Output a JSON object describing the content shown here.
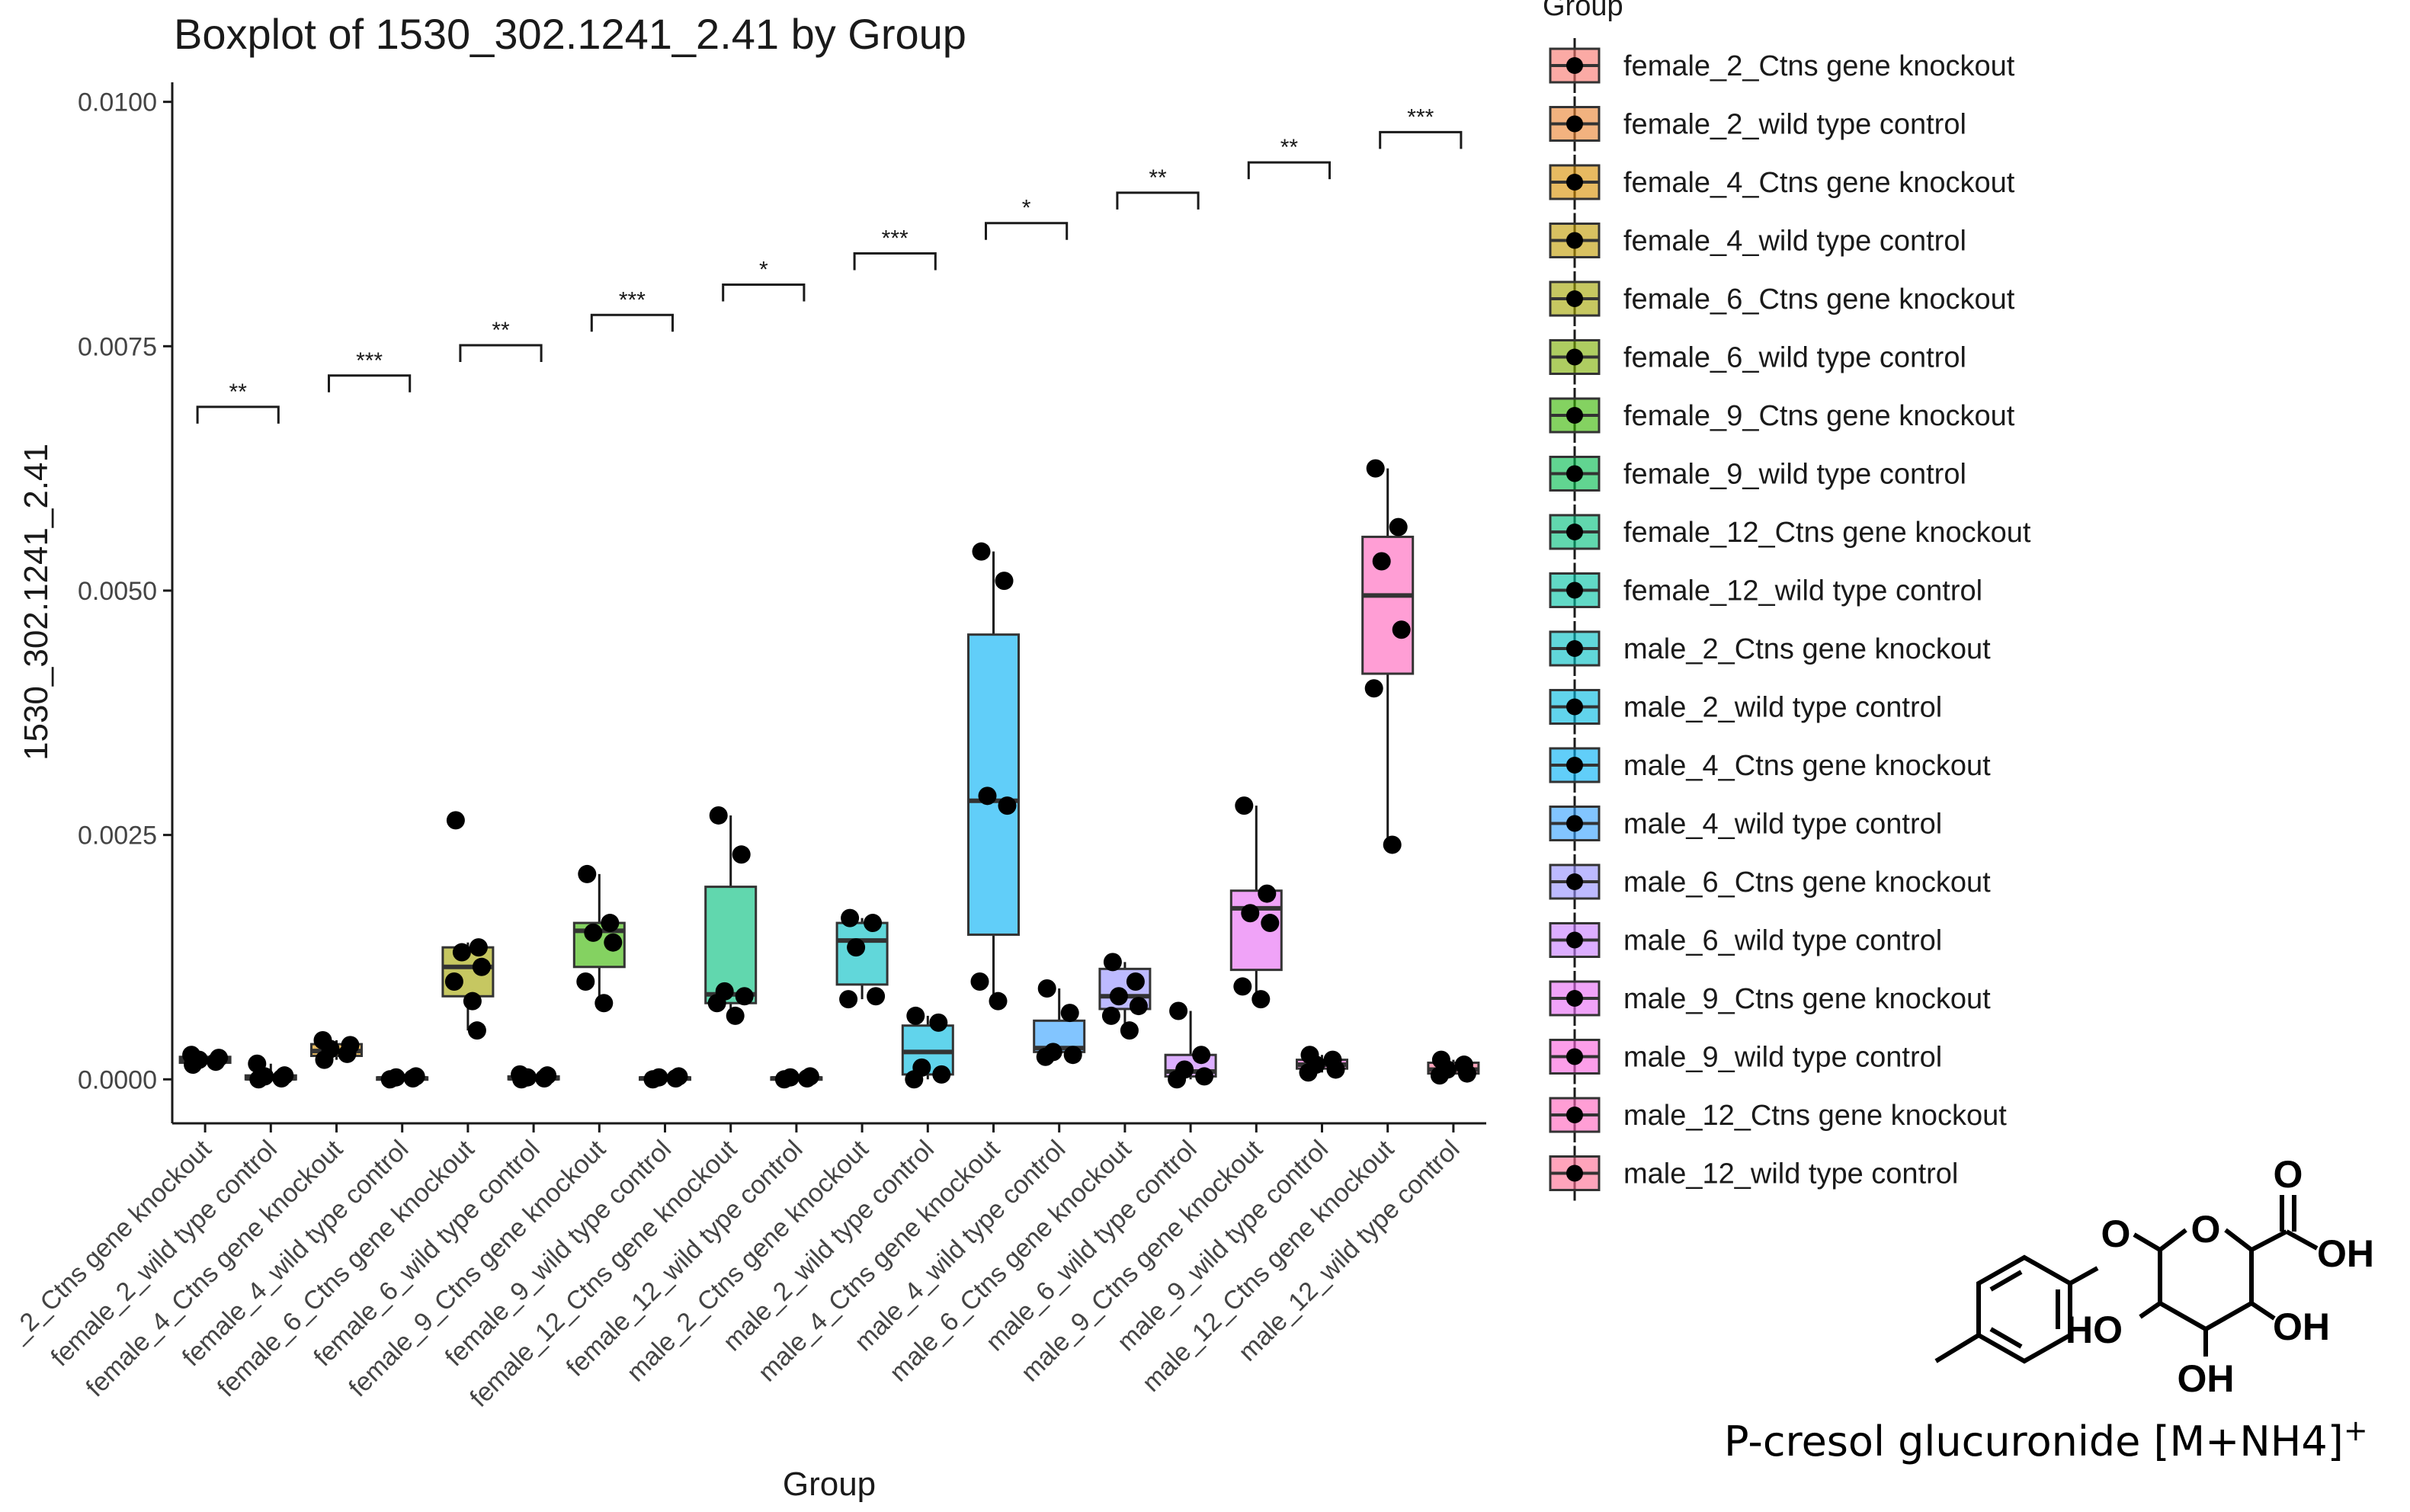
{
  "chart_data": {
    "type": "boxplot",
    "title": "Boxplot of 1530_302.1241_2.41 by Group",
    "xlabel": "Group",
    "ylabel": "1530_302.1241_2.41",
    "ylim": [
      -0.00045,
      0.0102
    ],
    "yticks": [
      "0.0000",
      "0.0025",
      "0.0050",
      "0.0075",
      "0.0100"
    ],
    "ytick_values": [
      0,
      0.0025,
      0.005,
      0.0075,
      0.01
    ],
    "grid": false,
    "legend_title": "Group",
    "legend_position": "right",
    "tick_label_prefix": "female",
    "categories": [
      "female_2_Ctns gene knockout",
      "female_2_wild type control",
      "female_4_Ctns gene knockout",
      "female_4_wild type control",
      "female_6_Ctns gene knockout",
      "female_6_wild type control",
      "female_9_Ctns gene knockout",
      "female_9_wild type control",
      "female_12_Ctns gene knockout",
      "female_12_wild type control",
      "male_2_Ctns gene knockout",
      "male_2_wild type control",
      "male_4_Ctns gene knockout",
      "male_4_wild type control",
      "male_6_Ctns gene knockout",
      "male_6_wild type control",
      "male_9_Ctns gene knockout",
      "male_9_wild type control",
      "male_12_Ctns gene knockout",
      "male_12_wild type control"
    ],
    "tick_labels": [
      "_2_Ctns gene knockout",
      "female_2_wild type control",
      "female_4_Ctns gene knockout",
      "female_4_wild type control",
      "female_6_Ctns gene knockout",
      "female_6_wild type control",
      "female_9_Ctns gene knockout",
      "female_9_wild type control",
      "female_12_Ctns gene knockout",
      "female_12_wild type control",
      "male_2_Ctns gene knockout",
      "male_2_wild type control",
      "male_4_Ctns gene knockout",
      "male_4_wild type control",
      "male_6_Ctns gene knockout",
      "male_6_wild type control",
      "male_9_Ctns gene knockout",
      "male_9_wild type control",
      "male_12_Ctns gene knockout",
      "male_12_wild type control"
    ],
    "colors": [
      "#F8766D",
      "#EA8331",
      "#D89000",
      "#C09B00",
      "#A3A500",
      "#7CAE00",
      "#39B600",
      "#00BB4E",
      "#00BF7D",
      "#00C1A3",
      "#00BFC4",
      "#00BAE0",
      "#00B0F6",
      "#35A2FF",
      "#9590FF",
      "#C77CFF",
      "#E76BF3",
      "#FA62DB",
      "#FF62BC",
      "#FF6C91"
    ],
    "boxes": [
      {
        "q1": 0.00017,
        "median": 0.0002,
        "q3": 0.00023,
        "whisker_low": 0.00015,
        "whisker_high": 0.00025,
        "points": [
          0.00015,
          0.00018,
          0.0002,
          0.00022,
          0.00025
        ]
      },
      {
        "q1": 0.0,
        "median": 1e-05,
        "q3": 4e-05,
        "whisker_low": 0.0,
        "whisker_high": 0.00016,
        "points": [
          0.0,
          1e-05,
          3e-05,
          4e-05,
          0.00016
        ]
      },
      {
        "q1": 0.00024,
        "median": 0.00029,
        "q3": 0.00036,
        "whisker_low": 0.0002,
        "whisker_high": 0.0004,
        "points": [
          0.0002,
          0.00026,
          0.00031,
          0.00035,
          0.0004
        ]
      },
      {
        "q1": 0.0,
        "median": 1e-05,
        "q3": 2e-05,
        "whisker_low": 0.0,
        "whisker_high": 3e-05,
        "points": [
          0.0,
          1e-05,
          2e-05,
          3e-05
        ]
      },
      {
        "q1": 0.00085,
        "median": 0.00115,
        "q3": 0.00135,
        "whisker_low": 0.0005,
        "whisker_high": 0.0014,
        "points": [
          0.00265,
          0.00135,
          0.0013,
          0.00115,
          0.001,
          0.0008,
          0.0005
        ]
      },
      {
        "q1": 0.0,
        "median": 1e-05,
        "q3": 3e-05,
        "whisker_low": 0.0,
        "whisker_high": 5e-05,
        "points": [
          0.0,
          1e-05,
          2e-05,
          4e-05,
          5e-05
        ]
      },
      {
        "q1": 0.00115,
        "median": 0.00152,
        "q3": 0.0016,
        "whisker_low": 0.00078,
        "whisker_high": 0.0021,
        "points": [
          0.0021,
          0.0016,
          0.0015,
          0.0014,
          0.001,
          0.00078
        ]
      },
      {
        "q1": 0.0,
        "median": 1e-05,
        "q3": 2e-05,
        "whisker_low": 0.0,
        "whisker_high": 3e-05,
        "points": [
          0.0,
          1e-05,
          2e-05,
          3e-05
        ]
      },
      {
        "q1": 0.00078,
        "median": 0.00087,
        "q3": 0.00197,
        "whisker_low": 0.00065,
        "whisker_high": 0.0027,
        "points": [
          0.0027,
          0.0023,
          0.0009,
          0.00085,
          0.00078,
          0.00065
        ]
      },
      {
        "q1": 0.0,
        "median": 1e-05,
        "q3": 2e-05,
        "whisker_low": 0.0,
        "whisker_high": 3e-05,
        "points": [
          0.0,
          1e-05,
          2e-05,
          3e-05
        ]
      },
      {
        "q1": 0.00097,
        "median": 0.00142,
        "q3": 0.0016,
        "whisker_low": 0.00082,
        "whisker_high": 0.00165,
        "points": [
          0.00165,
          0.0016,
          0.00135,
          0.00085,
          0.00082
        ]
      },
      {
        "q1": 5e-05,
        "median": 0.00028,
        "q3": 0.00055,
        "whisker_low": 0.0,
        "whisker_high": 0.00065,
        "points": [
          0.00065,
          0.00058,
          0.00012,
          5e-05,
          0.0
        ]
      },
      {
        "q1": 0.00148,
        "median": 0.00285,
        "q3": 0.00455,
        "whisker_low": 0.0008,
        "whisker_high": 0.0054,
        "points": [
          0.0054,
          0.0051,
          0.0029,
          0.0028,
          0.001,
          0.0008
        ]
      },
      {
        "q1": 0.00028,
        "median": 0.00032,
        "q3": 0.0006,
        "whisker_low": 0.00023,
        "whisker_high": 0.00093,
        "points": [
          0.00093,
          0.00068,
          0.00028,
          0.00025,
          0.00023
        ]
      },
      {
        "q1": 0.00072,
        "median": 0.00085,
        "q3": 0.00113,
        "whisker_low": 0.0005,
        "whisker_high": 0.0012,
        "points": [
          0.0012,
          0.001,
          0.00085,
          0.00075,
          0.00065,
          0.0005
        ]
      },
      {
        "q1": 3e-05,
        "median": 8e-05,
        "q3": 0.00025,
        "whisker_low": 0.0,
        "whisker_high": 0.0007,
        "points": [
          0.0007,
          0.00025,
          0.0001,
          3e-05,
          0.0
        ]
      },
      {
        "q1": 0.00112,
        "median": 0.00175,
        "q3": 0.00193,
        "whisker_low": 0.00082,
        "whisker_high": 0.0028,
        "points": [
          0.0028,
          0.0019,
          0.0017,
          0.0016,
          0.00095,
          0.00082
        ]
      },
      {
        "q1": 0.00011,
        "median": 0.00015,
        "q3": 0.0002,
        "whisker_low": 7e-05,
        "whisker_high": 0.00025,
        "points": [
          0.00025,
          0.0002,
          0.00015,
          0.0001,
          7e-05
        ]
      },
      {
        "q1": 0.00415,
        "median": 0.00495,
        "q3": 0.00555,
        "whisker_low": 0.0024,
        "whisker_high": 0.00625,
        "points": [
          0.00625,
          0.00565,
          0.0053,
          0.0046,
          0.004,
          0.0024
        ]
      },
      {
        "q1": 6e-05,
        "median": 0.0001,
        "q3": 0.00017,
        "whisker_low": 4e-05,
        "whisker_high": 0.0002,
        "points": [
          0.0002,
          0.00015,
          0.0001,
          6e-05,
          4e-05
        ]
      }
    ],
    "comparisons": [
      {
        "between": [
          "female_2_Ctns gene knockout",
          "female_2_wild type control"
        ],
        "y": 0.00688,
        "label": "**"
      },
      {
        "between": [
          "female_4_Ctns gene knockout",
          "female_4_wild type control"
        ],
        "y": 0.0072,
        "label": "***"
      },
      {
        "between": [
          "female_6_Ctns gene knockout",
          "female_6_wild type control"
        ],
        "y": 0.00751,
        "label": "**"
      },
      {
        "between": [
          "female_9_Ctns gene knockout",
          "female_9_wild type control"
        ],
        "y": 0.00782,
        "label": "***"
      },
      {
        "between": [
          "female_12_Ctns gene knockout",
          "female_12_wild type control"
        ],
        "y": 0.00813,
        "label": "*"
      },
      {
        "between": [
          "male_2_Ctns gene knockout",
          "male_2_wild type control"
        ],
        "y": 0.00845,
        "label": "***"
      },
      {
        "between": [
          "male_4_Ctns gene knockout",
          "male_4_wild type control"
        ],
        "y": 0.00876,
        "label": "*"
      },
      {
        "between": [
          "male_6_Ctns gene knockout",
          "male_6_wild type control"
        ],
        "y": 0.00907,
        "label": "**"
      },
      {
        "between": [
          "male_9_Ctns gene knockout",
          "male_9_wild type control"
        ],
        "y": 0.00938,
        "label": "**"
      },
      {
        "between": [
          "male_12_Ctns gene knockout",
          "male_12_wild type control"
        ],
        "y": 0.00969,
        "label": "***"
      }
    ]
  },
  "structure": {
    "atoms": [
      "O",
      "O",
      "O",
      "OH",
      "HO",
      "OH",
      "OH"
    ],
    "caption_text": "P-cresol glucuronide [M+NH4]",
    "caption_superscript": "+"
  }
}
